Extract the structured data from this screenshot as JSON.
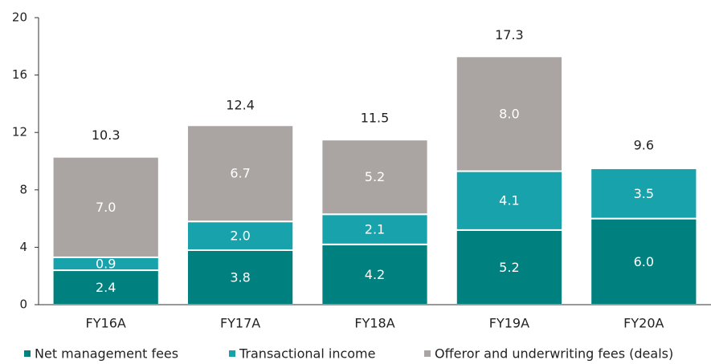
{
  "chart_data": {
    "type": "stacked-bar",
    "categories": [
      "FY16A",
      "FY17A",
      "FY18A",
      "FY19A",
      "FY20A"
    ],
    "series": [
      {
        "name": "Net management fees",
        "color": "#00807f",
        "values": [
          2.4,
          3.8,
          4.2,
          5.2,
          6.0
        ],
        "value_labels": [
          "2.4",
          "3.8",
          "4.2",
          "5.2",
          "6.0"
        ]
      },
      {
        "name": "Transactional income",
        "color": "#17a2ac",
        "values": [
          0.9,
          2.0,
          2.1,
          4.1,
          3.5
        ],
        "value_labels": [
          "0.9",
          "2.0",
          "2.1",
          "4.1",
          "3.5"
        ]
      },
      {
        "name": "Offeror and underwriting fees (deals)",
        "color": "#aaa5a2",
        "values": [
          7.0,
          6.7,
          5.2,
          8.0,
          null
        ],
        "value_labels": [
          "7.0",
          "6.7",
          "5.2",
          "8.0",
          null
        ]
      }
    ],
    "totals": [
      10.3,
      12.4,
      11.5,
      17.3,
      9.6
    ],
    "ylim": [
      0,
      20
    ],
    "yticks": [
      0,
      4,
      8,
      12,
      16,
      20
    ],
    "grid": false,
    "legend": "bottom"
  }
}
